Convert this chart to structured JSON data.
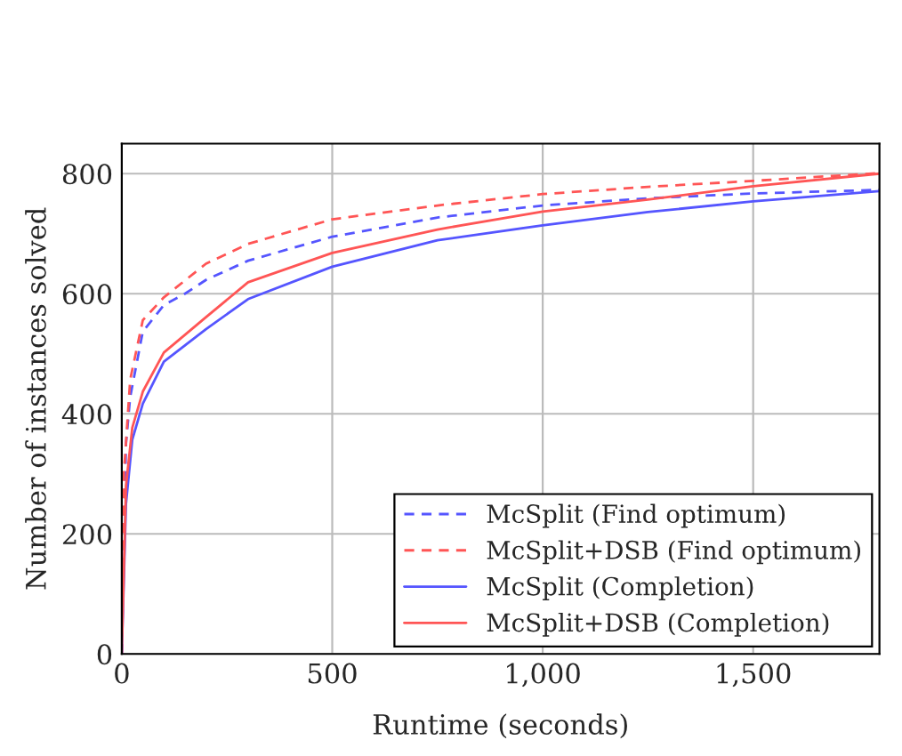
{
  "chart_data": {
    "type": "line",
    "xlabel": "Runtime (seconds)",
    "ylabel": "Number of instances solved",
    "xlim": [
      0,
      1800
    ],
    "ylim": [
      0,
      850
    ],
    "xticks": [
      0,
      500,
      {
        "value": 1000,
        "label": "1,000"
      },
      {
        "value": 1500,
        "label": "1,500"
      }
    ],
    "yticks": [
      0,
      200,
      400,
      600,
      800
    ],
    "grid": true,
    "legend": "bottom right",
    "marker": "none",
    "series": [
      {
        "name": "McSplit (Find optimum)",
        "color": "#5555ff",
        "line_style": "dashed",
        "x": [
          0,
          10,
          20,
          50,
          100,
          150,
          200,
          300,
          500,
          750,
          1000,
          1250,
          1500,
          1800
        ],
        "values": [
          0,
          350,
          428,
          537,
          581,
          600,
          623,
          655,
          695,
          727,
          747,
          759,
          767,
          773
        ]
      },
      {
        "name": "McSplit+DSB (Find optimum)",
        "color": "#ff5555",
        "line_style": "dashed",
        "x": [
          0,
          5,
          20,
          50,
          100,
          200,
          300,
          500,
          750,
          1000,
          1250,
          1500,
          1800
        ],
        "values": [
          0,
          300,
          457,
          556,
          594,
          650,
          683,
          724,
          747,
          766,
          778,
          788,
          801
        ]
      },
      {
        "name": "McSplit (Completion)",
        "color": "#5555ff",
        "line_style": "solid",
        "x": [
          0,
          10,
          25,
          50,
          100,
          200,
          300,
          500,
          750,
          1000,
          1250,
          1500,
          1800
        ],
        "values": [
          0,
          250,
          357,
          417,
          487,
          541,
          591,
          645,
          689,
          714,
          736,
          754,
          771
        ]
      },
      {
        "name": "McSplit+DSB (Completion)",
        "color": "#ff5555",
        "line_style": "solid",
        "x": [
          0,
          10,
          25,
          50,
          100,
          200,
          300,
          500,
          750,
          1000,
          1250,
          1500,
          1800
        ],
        "values": [
          0,
          280,
          377,
          437,
          502,
          561,
          619,
          668,
          707,
          737,
          757,
          779,
          800
        ]
      }
    ]
  }
}
